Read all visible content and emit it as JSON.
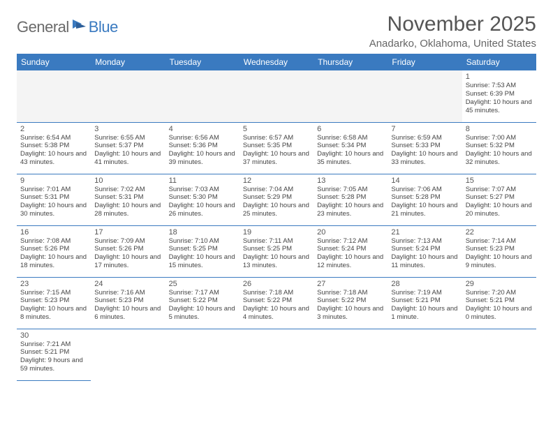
{
  "logo": {
    "textA": "General",
    "textB": "Blue"
  },
  "title": "November 2025",
  "location": "Anadarko, Oklahoma, United States",
  "colors": {
    "brand": "#3a7ac0",
    "text": "#444",
    "headerText": "#ffffff",
    "bg": "#ffffff",
    "emptyBg": "#f4f4f4"
  },
  "font": {
    "family": "Arial",
    "cellSize": 9.5,
    "headerSize": 12,
    "titleSize": 30,
    "locationSize": 15
  },
  "dayHeaders": [
    "Sunday",
    "Monday",
    "Tuesday",
    "Wednesday",
    "Thursday",
    "Friday",
    "Saturday"
  ],
  "weeks": [
    [
      null,
      null,
      null,
      null,
      null,
      null,
      {
        "n": "1",
        "sr": "Sunrise: 7:53 AM",
        "ss": "Sunset: 6:39 PM",
        "dl": "Daylight: 10 hours and 45 minutes."
      }
    ],
    [
      {
        "n": "2",
        "sr": "Sunrise: 6:54 AM",
        "ss": "Sunset: 5:38 PM",
        "dl": "Daylight: 10 hours and 43 minutes."
      },
      {
        "n": "3",
        "sr": "Sunrise: 6:55 AM",
        "ss": "Sunset: 5:37 PM",
        "dl": "Daylight: 10 hours and 41 minutes."
      },
      {
        "n": "4",
        "sr": "Sunrise: 6:56 AM",
        "ss": "Sunset: 5:36 PM",
        "dl": "Daylight: 10 hours and 39 minutes."
      },
      {
        "n": "5",
        "sr": "Sunrise: 6:57 AM",
        "ss": "Sunset: 5:35 PM",
        "dl": "Daylight: 10 hours and 37 minutes."
      },
      {
        "n": "6",
        "sr": "Sunrise: 6:58 AM",
        "ss": "Sunset: 5:34 PM",
        "dl": "Daylight: 10 hours and 35 minutes."
      },
      {
        "n": "7",
        "sr": "Sunrise: 6:59 AM",
        "ss": "Sunset: 5:33 PM",
        "dl": "Daylight: 10 hours and 33 minutes."
      },
      {
        "n": "8",
        "sr": "Sunrise: 7:00 AM",
        "ss": "Sunset: 5:32 PM",
        "dl": "Daylight: 10 hours and 32 minutes."
      }
    ],
    [
      {
        "n": "9",
        "sr": "Sunrise: 7:01 AM",
        "ss": "Sunset: 5:31 PM",
        "dl": "Daylight: 10 hours and 30 minutes."
      },
      {
        "n": "10",
        "sr": "Sunrise: 7:02 AM",
        "ss": "Sunset: 5:31 PM",
        "dl": "Daylight: 10 hours and 28 minutes."
      },
      {
        "n": "11",
        "sr": "Sunrise: 7:03 AM",
        "ss": "Sunset: 5:30 PM",
        "dl": "Daylight: 10 hours and 26 minutes."
      },
      {
        "n": "12",
        "sr": "Sunrise: 7:04 AM",
        "ss": "Sunset: 5:29 PM",
        "dl": "Daylight: 10 hours and 25 minutes."
      },
      {
        "n": "13",
        "sr": "Sunrise: 7:05 AM",
        "ss": "Sunset: 5:28 PM",
        "dl": "Daylight: 10 hours and 23 minutes."
      },
      {
        "n": "14",
        "sr": "Sunrise: 7:06 AM",
        "ss": "Sunset: 5:28 PM",
        "dl": "Daylight: 10 hours and 21 minutes."
      },
      {
        "n": "15",
        "sr": "Sunrise: 7:07 AM",
        "ss": "Sunset: 5:27 PM",
        "dl": "Daylight: 10 hours and 20 minutes."
      }
    ],
    [
      {
        "n": "16",
        "sr": "Sunrise: 7:08 AM",
        "ss": "Sunset: 5:26 PM",
        "dl": "Daylight: 10 hours and 18 minutes."
      },
      {
        "n": "17",
        "sr": "Sunrise: 7:09 AM",
        "ss": "Sunset: 5:26 PM",
        "dl": "Daylight: 10 hours and 17 minutes."
      },
      {
        "n": "18",
        "sr": "Sunrise: 7:10 AM",
        "ss": "Sunset: 5:25 PM",
        "dl": "Daylight: 10 hours and 15 minutes."
      },
      {
        "n": "19",
        "sr": "Sunrise: 7:11 AM",
        "ss": "Sunset: 5:25 PM",
        "dl": "Daylight: 10 hours and 13 minutes."
      },
      {
        "n": "20",
        "sr": "Sunrise: 7:12 AM",
        "ss": "Sunset: 5:24 PM",
        "dl": "Daylight: 10 hours and 12 minutes."
      },
      {
        "n": "21",
        "sr": "Sunrise: 7:13 AM",
        "ss": "Sunset: 5:24 PM",
        "dl": "Daylight: 10 hours and 11 minutes."
      },
      {
        "n": "22",
        "sr": "Sunrise: 7:14 AM",
        "ss": "Sunset: 5:23 PM",
        "dl": "Daylight: 10 hours and 9 minutes."
      }
    ],
    [
      {
        "n": "23",
        "sr": "Sunrise: 7:15 AM",
        "ss": "Sunset: 5:23 PM",
        "dl": "Daylight: 10 hours and 8 minutes."
      },
      {
        "n": "24",
        "sr": "Sunrise: 7:16 AM",
        "ss": "Sunset: 5:23 PM",
        "dl": "Daylight: 10 hours and 6 minutes."
      },
      {
        "n": "25",
        "sr": "Sunrise: 7:17 AM",
        "ss": "Sunset: 5:22 PM",
        "dl": "Daylight: 10 hours and 5 minutes."
      },
      {
        "n": "26",
        "sr": "Sunrise: 7:18 AM",
        "ss": "Sunset: 5:22 PM",
        "dl": "Daylight: 10 hours and 4 minutes."
      },
      {
        "n": "27",
        "sr": "Sunrise: 7:18 AM",
        "ss": "Sunset: 5:22 PM",
        "dl": "Daylight: 10 hours and 3 minutes."
      },
      {
        "n": "28",
        "sr": "Sunrise: 7:19 AM",
        "ss": "Sunset: 5:21 PM",
        "dl": "Daylight: 10 hours and 1 minute."
      },
      {
        "n": "29",
        "sr": "Sunrise: 7:20 AM",
        "ss": "Sunset: 5:21 PM",
        "dl": "Daylight: 10 hours and 0 minutes."
      }
    ],
    [
      {
        "n": "30",
        "sr": "Sunrise: 7:21 AM",
        "ss": "Sunset: 5:21 PM",
        "dl": "Daylight: 9 hours and 59 minutes."
      },
      null,
      null,
      null,
      null,
      null,
      null
    ]
  ]
}
